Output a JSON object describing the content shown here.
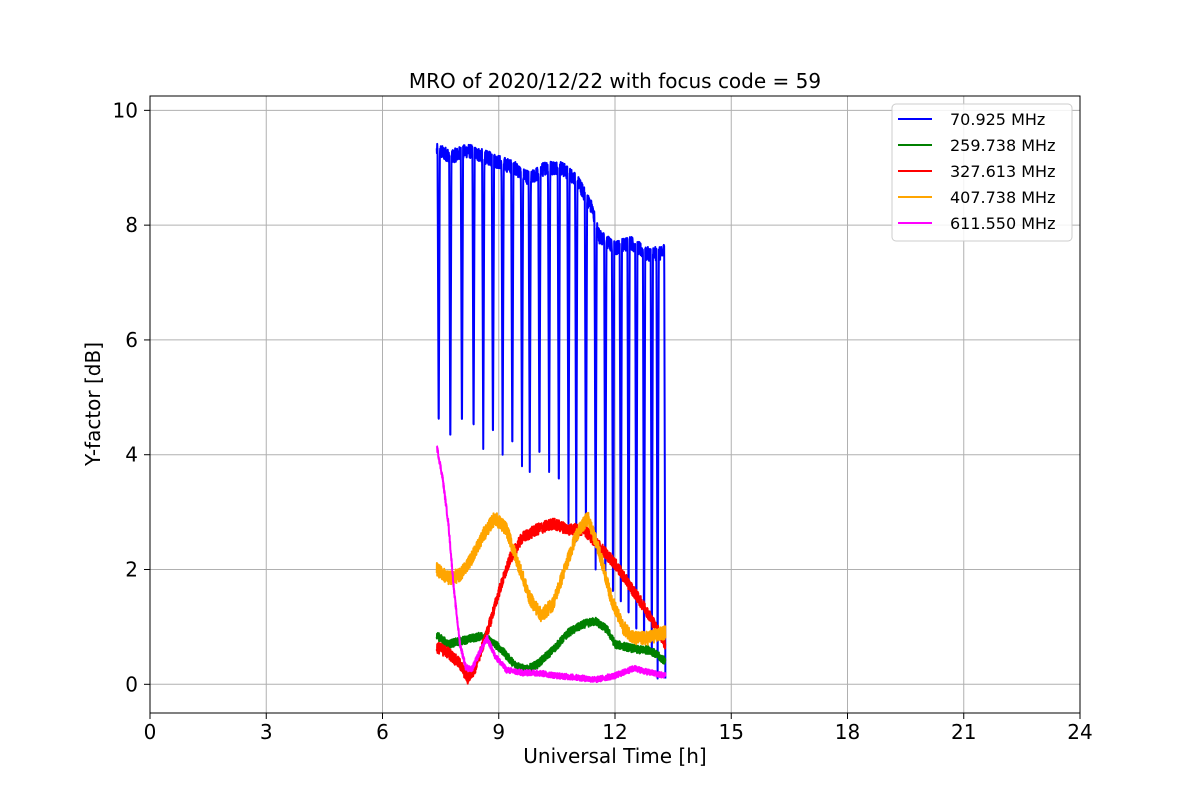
{
  "chart_data": {
    "type": "line",
    "title": "MRO of 2020/12/22 with focus code = 59",
    "xlabel": "Universal Time [h]",
    "ylabel": "Y-factor [dB]",
    "xlim": [
      0,
      24
    ],
    "ylim": [
      -0.5,
      10.25
    ],
    "xticks": [
      0,
      3,
      6,
      9,
      12,
      15,
      18,
      21,
      24
    ],
    "yticks": [
      0,
      2,
      4,
      6,
      8,
      10
    ],
    "grid": true,
    "legend_position": "top-right",
    "series": [
      {
        "name": " 70.925 MHz",
        "color": "#0000ff",
        "noise": 0.12,
        "values": [
          [
            7.4,
            9.3
          ],
          [
            7.8,
            9.2
          ],
          [
            8.2,
            9.3
          ],
          [
            8.6,
            9.2
          ],
          [
            9.0,
            9.1
          ],
          [
            9.4,
            9.0
          ],
          [
            9.8,
            8.8
          ],
          [
            10.2,
            9.0
          ],
          [
            10.6,
            9.0
          ],
          [
            11.0,
            8.8
          ],
          [
            11.4,
            8.3
          ],
          [
            11.6,
            7.8
          ],
          [
            12.0,
            7.6
          ],
          [
            12.4,
            7.7
          ],
          [
            12.8,
            7.5
          ],
          [
            13.2,
            7.5
          ],
          [
            13.3,
            7.6
          ]
        ],
        "dips": [
          [
            7.45,
            4.3
          ],
          [
            7.75,
            4.0
          ],
          [
            8.05,
            4.3
          ],
          [
            8.35,
            4.2
          ],
          [
            8.6,
            4.1
          ],
          [
            8.85,
            4.1
          ],
          [
            9.1,
            4.0
          ],
          [
            9.35,
            3.9
          ],
          [
            9.6,
            3.8
          ],
          [
            9.8,
            3.7
          ],
          [
            10.05,
            3.7
          ],
          [
            10.3,
            3.7
          ],
          [
            10.55,
            3.2
          ],
          [
            10.8,
            2.8
          ],
          [
            11.0,
            2.5
          ],
          [
            11.25,
            2.5
          ],
          [
            11.5,
            2.0
          ],
          [
            11.75,
            1.5
          ],
          [
            11.95,
            1.2
          ],
          [
            12.15,
            1.0
          ],
          [
            12.35,
            0.8
          ],
          [
            12.55,
            0.5
          ],
          [
            12.75,
            0.3
          ],
          [
            12.95,
            0.1
          ],
          [
            13.1,
            0.1
          ],
          [
            13.3,
            0.1
          ]
        ]
      },
      {
        "name": "259.738 MHz",
        "color": "#008000",
        "noise": 0.07,
        "values": [
          [
            7.4,
            0.85
          ],
          [
            7.7,
            0.7
          ],
          [
            8.0,
            0.75
          ],
          [
            8.3,
            0.8
          ],
          [
            8.6,
            0.85
          ],
          [
            9.0,
            0.65
          ],
          [
            9.4,
            0.35
          ],
          [
            9.7,
            0.25
          ],
          [
            10.0,
            0.35
          ],
          [
            10.4,
            0.6
          ],
          [
            10.8,
            0.9
          ],
          [
            11.2,
            1.05
          ],
          [
            11.5,
            1.1
          ],
          [
            11.8,
            0.95
          ],
          [
            12.0,
            0.7
          ],
          [
            12.3,
            0.65
          ],
          [
            12.6,
            0.6
          ],
          [
            12.9,
            0.6
          ],
          [
            13.3,
            0.4
          ]
        ]
      },
      {
        "name": "327.613 MHz",
        "color": "#ff0000",
        "noise": 0.1,
        "values": [
          [
            7.4,
            0.65
          ],
          [
            7.7,
            0.55
          ],
          [
            8.0,
            0.35
          ],
          [
            8.2,
            0.1
          ],
          [
            8.4,
            0.3
          ],
          [
            8.7,
            0.9
          ],
          [
            9.0,
            1.6
          ],
          [
            9.3,
            2.2
          ],
          [
            9.6,
            2.55
          ],
          [
            10.0,
            2.7
          ],
          [
            10.4,
            2.8
          ],
          [
            10.8,
            2.7
          ],
          [
            11.2,
            2.7
          ],
          [
            11.6,
            2.4
          ],
          [
            12.0,
            2.1
          ],
          [
            12.4,
            1.7
          ],
          [
            12.8,
            1.3
          ],
          [
            13.3,
            0.7
          ]
        ]
      },
      {
        "name": "407.738 MHz",
        "color": "#ffa500",
        "noise": 0.12,
        "values": [
          [
            7.4,
            2.0
          ],
          [
            7.7,
            1.85
          ],
          [
            8.0,
            1.9
          ],
          [
            8.3,
            2.2
          ],
          [
            8.6,
            2.6
          ],
          [
            8.9,
            2.9
          ],
          [
            9.2,
            2.7
          ],
          [
            9.5,
            2.1
          ],
          [
            9.8,
            1.5
          ],
          [
            10.1,
            1.2
          ],
          [
            10.4,
            1.4
          ],
          [
            10.7,
            2.0
          ],
          [
            11.0,
            2.6
          ],
          [
            11.3,
            2.9
          ],
          [
            11.6,
            2.3
          ],
          [
            11.9,
            1.5
          ],
          [
            12.2,
            1.0
          ],
          [
            12.5,
            0.8
          ],
          [
            12.8,
            0.8
          ],
          [
            13.3,
            0.9
          ]
        ]
      },
      {
        "name": "611.550 MHz",
        "color": "#ff00ff",
        "noise": 0.05,
        "values": [
          [
            7.4,
            4.15
          ],
          [
            7.55,
            3.6
          ],
          [
            7.7,
            2.8
          ],
          [
            7.85,
            1.6
          ],
          [
            8.0,
            0.7
          ],
          [
            8.15,
            0.3
          ],
          [
            8.3,
            0.25
          ],
          [
            8.5,
            0.55
          ],
          [
            8.7,
            0.8
          ],
          [
            8.9,
            0.5
          ],
          [
            9.2,
            0.25
          ],
          [
            9.6,
            0.2
          ],
          [
            10.0,
            0.2
          ],
          [
            10.5,
            0.15
          ],
          [
            11.0,
            0.12
          ],
          [
            11.5,
            0.08
          ],
          [
            12.0,
            0.15
          ],
          [
            12.5,
            0.28
          ],
          [
            12.8,
            0.22
          ],
          [
            13.3,
            0.15
          ]
        ]
      }
    ]
  }
}
